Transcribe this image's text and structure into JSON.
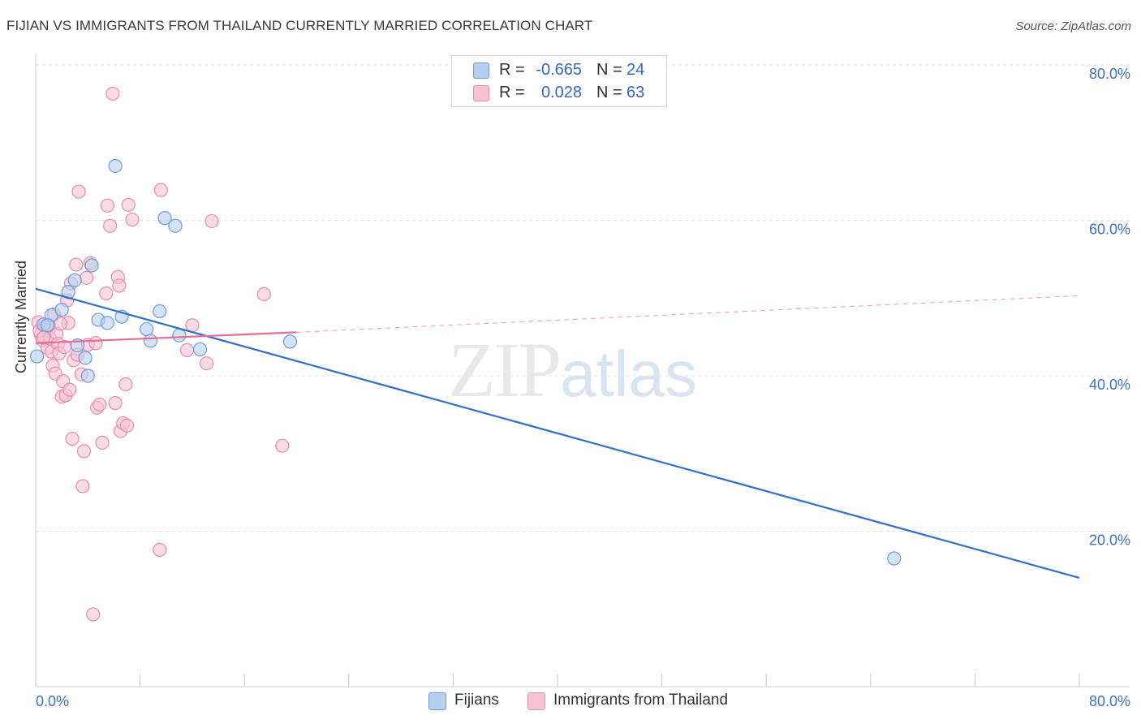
{
  "title": "FIJIAN VS IMMIGRANTS FROM THAILAND CURRENTLY MARRIED CORRELATION CHART",
  "source": "Source: ZipAtlas.com",
  "watermark": {
    "zip": "ZIP",
    "atlas": "atlas"
  },
  "legend": {
    "fijians": {
      "r_label": "R =",
      "r_value": "-0.665",
      "n_label": "N =",
      "n_value": "24"
    },
    "thailand": {
      "r_label": "R =",
      "r_value": "0.028",
      "n_label": "N =",
      "n_value": "63"
    }
  },
  "bottom_legend": {
    "fijians": "Fijians",
    "thailand": "Immigrants from Thailand"
  },
  "colors": {
    "blue_fill": "#b7cff0",
    "blue_stroke": "#6e9cd8",
    "blue_line": "#2f6fcf",
    "pink_fill": "#f7c3d3",
    "pink_stroke": "#e98aab",
    "pink_line": "#e36e99",
    "grid": "#e2e2e2",
    "tick_text": "#3b6fc9"
  },
  "chart_data": {
    "type": "scatter",
    "title": "FIJIAN VS IMMIGRANTS FROM THAILAND CURRENTLY MARRIED CORRELATION CHART",
    "xlabel": "",
    "ylabel": "Currently Married",
    "xlim": [
      0,
      80
    ],
    "ylim": [
      0,
      80
    ],
    "x_tick_labels": [
      "0.0%",
      "80.0%"
    ],
    "y_ticks": [
      20,
      40,
      60,
      80
    ],
    "y_tick_labels": [
      "20.0%",
      "40.0%",
      "60.0%",
      "80.0%"
    ],
    "series": [
      {
        "name": "Fijians",
        "points": [
          [
            0.1,
            42.5
          ],
          [
            0.6,
            46.6
          ],
          [
            1.2,
            47.8
          ],
          [
            2.0,
            48.5
          ],
          [
            2.5,
            50.8
          ],
          [
            3.0,
            52.3
          ],
          [
            3.2,
            43.9
          ],
          [
            3.8,
            42.3
          ],
          [
            4.0,
            40.0
          ],
          [
            4.3,
            54.2
          ],
          [
            4.8,
            47.2
          ],
          [
            5.5,
            46.8
          ],
          [
            6.1,
            67.0
          ],
          [
            6.6,
            47.6
          ],
          [
            8.5,
            46.0
          ],
          [
            8.8,
            44.5
          ],
          [
            9.5,
            48.3
          ],
          [
            9.9,
            60.3
          ],
          [
            10.7,
            59.3
          ],
          [
            11.0,
            45.2
          ],
          [
            12.6,
            43.4
          ],
          [
            19.5,
            44.4
          ],
          [
            65.8,
            16.5
          ],
          [
            0.9,
            46.5
          ]
        ],
        "trend": {
          "x": [
            0,
            80
          ],
          "y": [
            51.2,
            14.0
          ],
          "style": "solid"
        }
      },
      {
        "name": "Immigrants from Thailand",
        "points": [
          [
            0.2,
            46.9
          ],
          [
            0.4,
            45.3
          ],
          [
            0.5,
            44.6
          ],
          [
            0.7,
            46.3
          ],
          [
            0.9,
            43.6
          ],
          [
            1.0,
            45.9
          ],
          [
            1.1,
            44.8
          ],
          [
            1.2,
            43.1
          ],
          [
            1.3,
            41.3
          ],
          [
            1.4,
            47.9
          ],
          [
            1.5,
            40.3
          ],
          [
            1.6,
            45.4
          ],
          [
            1.7,
            44.1
          ],
          [
            1.8,
            42.9
          ],
          [
            2.0,
            37.3
          ],
          [
            2.1,
            39.3
          ],
          [
            2.2,
            43.7
          ],
          [
            2.3,
            37.5
          ],
          [
            2.4,
            49.7
          ],
          [
            2.5,
            46.8
          ],
          [
            2.6,
            38.2
          ],
          [
            2.7,
            51.9
          ],
          [
            2.8,
            31.9
          ],
          [
            2.9,
            42.0
          ],
          [
            3.1,
            54.3
          ],
          [
            3.2,
            42.7
          ],
          [
            3.3,
            63.7
          ],
          [
            3.5,
            40.2
          ],
          [
            3.6,
            25.8
          ],
          [
            3.7,
            30.3
          ],
          [
            3.9,
            52.6
          ],
          [
            4.0,
            44.0
          ],
          [
            4.2,
            54.5
          ],
          [
            4.4,
            9.3
          ],
          [
            4.6,
            44.2
          ],
          [
            4.7,
            35.9
          ],
          [
            4.9,
            36.3
          ],
          [
            5.1,
            31.4
          ],
          [
            5.4,
            50.6
          ],
          [
            5.5,
            61.9
          ],
          [
            5.7,
            59.3
          ],
          [
            5.9,
            76.3
          ],
          [
            6.1,
            36.5
          ],
          [
            6.3,
            52.7
          ],
          [
            6.4,
            51.6
          ],
          [
            6.5,
            32.9
          ],
          [
            6.7,
            33.9
          ],
          [
            6.9,
            38.9
          ],
          [
            7.0,
            33.6
          ],
          [
            7.1,
            62.0
          ],
          [
            7.4,
            60.1
          ],
          [
            9.5,
            17.6
          ],
          [
            9.6,
            63.9
          ],
          [
            11.6,
            43.3
          ],
          [
            12.0,
            46.5
          ],
          [
            13.1,
            41.6
          ],
          [
            13.5,
            59.9
          ],
          [
            17.5,
            50.5
          ],
          [
            18.9,
            31.0
          ],
          [
            0.3,
            45.8
          ],
          [
            1.9,
            46.7
          ],
          [
            0.6,
            44.9
          ],
          [
            1.0,
            46.5
          ]
        ],
        "trend": {
          "x": [
            0,
            20
          ],
          "y": [
            44.2,
            45.6
          ],
          "style": "solid"
        },
        "trend_extension": {
          "x": [
            20,
            80
          ],
          "y": [
            45.6,
            50.3
          ],
          "style": "dashed"
        }
      }
    ]
  }
}
